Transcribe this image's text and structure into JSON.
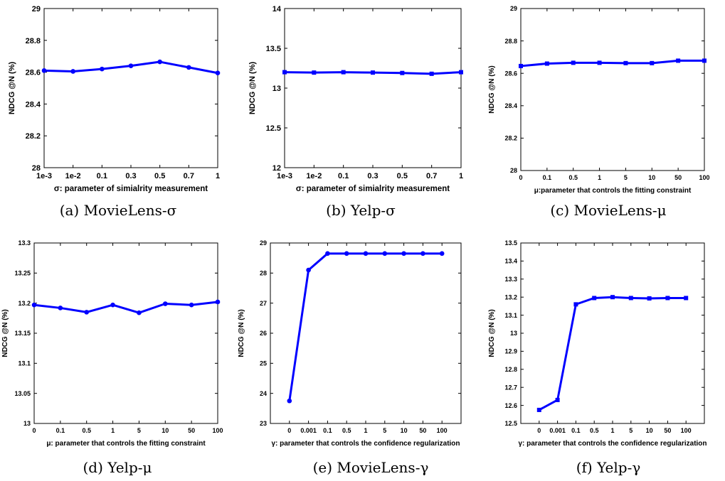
{
  "chart_data": [
    {
      "type": "line",
      "caption": "(a) MovieLens-σ",
      "xlabel": "σ: parameter of simialrity measurement",
      "ylabel": "NDCG @N (%)",
      "categories": [
        "1e-3",
        "1e-2",
        "0.1",
        "0.3",
        "0.5",
        "0.7",
        "1"
      ],
      "ylim": [
        28,
        29
      ],
      "yticks": [
        28,
        28.2,
        28.4,
        28.6,
        28.8,
        29
      ],
      "ytick_labels": [
        "28",
        "28.2",
        "28.4",
        "28.6",
        "28.8",
        "29"
      ],
      "cat_offset": 0,
      "marker": "circle",
      "values": [
        28.61,
        28.605,
        28.62,
        28.64,
        28.665,
        28.63,
        28.595
      ],
      "color": "#0000ff"
    },
    {
      "type": "line",
      "caption": "(b) Yelp-σ",
      "xlabel": "σ: parameter of simialrity measurement",
      "ylabel": "NDCG @N (%)",
      "categories": [
        "1e-3",
        "1e-2",
        "0.1",
        "0.3",
        "0.5",
        "0.7",
        "1"
      ],
      "ylim": [
        12,
        14
      ],
      "yticks": [
        12,
        12.5,
        13,
        13.5,
        14
      ],
      "ytick_labels": [
        "12",
        "12.5",
        "13",
        "13.5",
        "14"
      ],
      "cat_offset": 0,
      "marker": "square",
      "values": [
        13.2,
        13.195,
        13.2,
        13.195,
        13.19,
        13.18,
        13.2
      ],
      "color": "#0000ff"
    },
    {
      "type": "line",
      "caption": "(c) MovieLens-μ",
      "xlabel": "μ:parameter that controls the fitting constraint",
      "ylabel": "NDCG @N (%)",
      "categories": [
        "0",
        "0.1",
        "0.5",
        "1",
        "5",
        "10",
        "50",
        "100"
      ],
      "ylim": [
        28,
        29
      ],
      "yticks": [
        28,
        28.2,
        28.4,
        28.6,
        28.8,
        29
      ],
      "ytick_labels": [
        "28",
        "28.2",
        "28.4",
        "28.6",
        "28.8",
        "29"
      ],
      "cat_offset": 0,
      "marker": "square",
      "values": [
        28.645,
        28.66,
        28.665,
        28.665,
        28.663,
        28.663,
        28.678,
        28.678
      ],
      "color": "#0000ff"
    },
    {
      "type": "line",
      "caption": "(d) Yelp-μ",
      "xlabel": "μ: parameter that controls the fitting constraint",
      "ylabel": "NDCG @N (%)",
      "categories": [
        "0",
        "0.1",
        "0.5",
        "1",
        "5",
        "10",
        "50",
        "100"
      ],
      "ylim": [
        13,
        13.3
      ],
      "yticks": [
        13,
        13.05,
        13.1,
        13.15,
        13.2,
        13.25,
        13.3
      ],
      "ytick_labels": [
        "13",
        "13.05",
        "13.1",
        "13.15",
        "13.2",
        "13.25",
        "13.3"
      ],
      "cat_offset": 0,
      "marker": "circle",
      "values": [
        13.197,
        13.192,
        13.185,
        13.197,
        13.184,
        13.199,
        13.197,
        13.202
      ],
      "color": "#0000ff"
    },
    {
      "type": "line",
      "caption": "(e) MovieLens-γ",
      "xlabel": "γ: parameter that controls the confidence regularization",
      "ylabel": "NDCG @N (%)",
      "categories": [
        "0",
        "0.001",
        "0.1",
        "0.5",
        "1",
        "5",
        "10",
        "50",
        "100"
      ],
      "ylim": [
        23,
        29
      ],
      "yticks": [
        23,
        24,
        25,
        26,
        27,
        28,
        29
      ],
      "ytick_labels": [
        "23",
        "24",
        "25",
        "26",
        "27",
        "28",
        "29"
      ],
      "cat_offset": 1,
      "marker": "circle",
      "values": [
        23.75,
        28.1,
        28.65,
        28.65,
        28.65,
        28.65,
        28.65,
        28.65,
        28.65
      ],
      "color": "#0000ff"
    },
    {
      "type": "line",
      "caption": "(f) Yelp-γ",
      "xlabel": "γ: parameter that controls the confidence regularization",
      "ylabel": "NDCG @N (%)",
      "categories": [
        "0",
        "0.001",
        "0.1",
        "0.5",
        "1",
        "5",
        "10",
        "50",
        "100"
      ],
      "ylim": [
        12.5,
        13.5
      ],
      "yticks": [
        12.5,
        12.6,
        12.7,
        12.8,
        12.9,
        13,
        13.1,
        13.2,
        13.3,
        13.4,
        13.5
      ],
      "ytick_labels": [
        "12.5",
        "12.6",
        "12.7",
        "12.8",
        "12.9",
        "13",
        "13.1",
        "13.2",
        "13.3",
        "13.4",
        "13.5"
      ],
      "cat_offset": 1,
      "marker": "square",
      "values": [
        12.575,
        12.63,
        13.16,
        13.195,
        13.2,
        13.195,
        13.193,
        13.195,
        13.195
      ],
      "color": "#0000ff"
    }
  ]
}
